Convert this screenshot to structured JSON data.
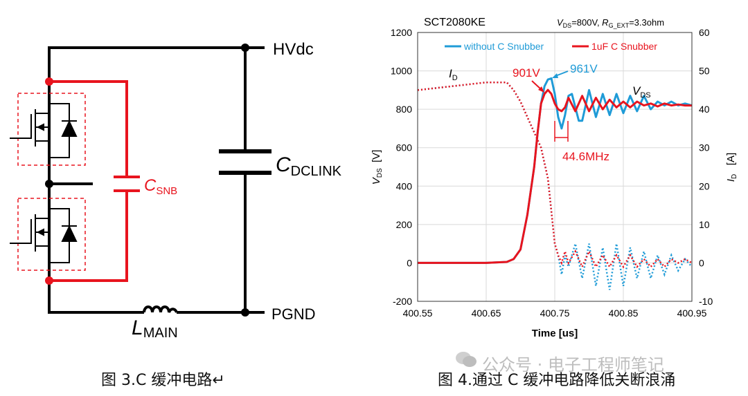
{
  "left": {
    "labels": {
      "hvdc": "HVdc",
      "pgnd": "PGND",
      "cdclink_main": "C",
      "cdclink_sub": "DCLINK",
      "csnb_main": "C",
      "csnb_sub": "SNB",
      "lmain_main": "L",
      "lmain_sub": "MAIN"
    },
    "caption": "图 3.C 缓冲电路↵",
    "colors": {
      "wire": "#000000",
      "snubber": "#e8141e",
      "dashed_box": "#e8141e"
    },
    "icons": [
      "mosfet-icon",
      "diode-icon",
      "capacitor-icon",
      "inductor-icon"
    ]
  },
  "right": {
    "caption": "图 4.通过 C 缓冲电路降低关断浪涌",
    "watermark": "公众号 · 电子工程师笔记",
    "chart_data": {
      "type": "line",
      "title": "SCT2080KE",
      "conditions": {
        "vds_main": "V",
        "vds_sub": "DS",
        "vds_val": "=800V, ",
        "rg_main": "R",
        "rg_sub": "G_EXT",
        "rg_val": "=3.3ohm"
      },
      "xlabel": "Time [us]",
      "ylabel_left": {
        "main": "V",
        "sub": "DS",
        "unit": "[V]"
      },
      "ylabel_right": {
        "main": "I",
        "sub": "D",
        "unit": "[A]"
      },
      "xlim": [
        400.55,
        400.95
      ],
      "ylim_left": [
        -200,
        1200
      ],
      "ylim_right": [
        -10,
        60
      ],
      "x_ticks": [
        "400.55",
        "400.65",
        "400.75",
        "400.85",
        "400.95"
      ],
      "y_ticks_left": [
        "-200",
        "0",
        "200",
        "400",
        "600",
        "800",
        "1000",
        "1200"
      ],
      "y_ticks_right": [
        "-10",
        "0",
        "10",
        "20",
        "30",
        "40",
        "50",
        "60"
      ],
      "legend_position": "top",
      "series": [
        {
          "name": "without C Snubber",
          "color": "#1f9bd7",
          "vds": {
            "x": [
              400.55,
              400.6,
              400.65,
              400.68,
              400.69,
              400.7,
              400.71,
              400.72,
              400.725,
              400.73,
              400.735,
              400.74,
              400.745,
              400.75,
              400.755,
              400.76,
              400.765,
              400.77,
              400.775,
              400.78,
              400.785,
              400.79,
              400.8,
              400.81,
              400.82,
              400.83,
              400.84,
              400.85,
              400.86,
              400.87,
              400.88,
              400.89,
              400.9,
              400.91,
              400.92,
              400.93,
              400.94,
              400.95
            ],
            "y": [
              0,
              0,
              0,
              5,
              20,
              70,
              250,
              500,
              680,
              830,
              920,
              955,
              961,
              880,
              760,
              700,
              770,
              870,
              880,
              810,
              740,
              740,
              900,
              760,
              880,
              770,
              880,
              780,
              870,
              790,
              870,
              800,
              840,
              820,
              840,
              820,
              830,
              820
            ]
          },
          "id": {
            "x": [
              400.55,
              400.6,
              400.65,
              400.68,
              400.69,
              400.7,
              400.71,
              400.72,
              400.73,
              400.74,
              400.75,
              400.755,
              400.76,
              400.765,
              400.77,
              400.78,
              400.79,
              400.8,
              400.81,
              400.82,
              400.83,
              400.84,
              400.85,
              400.86,
              400.87,
              400.88,
              400.89,
              400.9,
              400.91,
              400.92,
              400.93,
              400.94,
              400.95
            ],
            "y": [
              45,
              46,
              47,
              47,
              45,
              42,
              38,
              34,
              30,
              22,
              5,
              2,
              -3,
              2,
              -1,
              5,
              -4,
              5,
              -6,
              4,
              -7,
              5,
              -6,
              4,
              -4,
              3,
              -4,
              2,
              -3,
              2,
              -2,
              1,
              -1
            ]
          }
        },
        {
          "name": "1uF C Snubber",
          "color": "#e8141e",
          "vds": {
            "x": [
              400.55,
              400.6,
              400.65,
              400.68,
              400.69,
              400.7,
              400.71,
              400.72,
              400.725,
              400.73,
              400.735,
              400.74,
              400.745,
              400.75,
              400.755,
              400.76,
              400.765,
              400.77,
              400.78,
              400.79,
              400.8,
              400.81,
              400.82,
              400.83,
              400.84,
              400.85,
              400.86,
              400.87,
              400.88,
              400.89,
              400.9,
              400.91,
              400.92,
              400.93,
              400.94,
              400.95
            ],
            "y": [
              0,
              0,
              0,
              5,
              20,
              70,
              250,
              500,
              680,
              830,
              880,
              901,
              880,
              830,
              800,
              790,
              810,
              860,
              790,
              870,
              790,
              860,
              800,
              850,
              810,
              840,
              810,
              840,
              820,
              830,
              815,
              830,
              820,
              825,
              820,
              820
            ]
          },
          "id": {
            "x": [
              400.55,
              400.6,
              400.65,
              400.68,
              400.69,
              400.7,
              400.71,
              400.72,
              400.73,
              400.74,
              400.75,
              400.755,
              400.76,
              400.765,
              400.77,
              400.78,
              400.79,
              400.8,
              400.81,
              400.82,
              400.83,
              400.84,
              400.85,
              400.86,
              400.87,
              400.88,
              400.89,
              400.9,
              400.91,
              400.92,
              400.93,
              400.94,
              400.95
            ],
            "y": [
              45,
              46,
              47,
              47,
              45,
              42,
              38,
              34,
              30,
              22,
              5,
              2,
              0,
              3,
              0,
              3,
              -1,
              3,
              -1,
              2,
              -1,
              2,
              -1,
              2,
              -1,
              1,
              -1,
              1,
              -1,
              1,
              0,
              1,
              0
            ]
          }
        }
      ],
      "annotations": {
        "id_label_main": "I",
        "id_label_sub": "D",
        "vds_label_main": "V",
        "vds_label_sub": "DS",
        "peak_red": "901V",
        "peak_blue": "961V",
        "freq": "44.6MHz"
      }
    }
  }
}
